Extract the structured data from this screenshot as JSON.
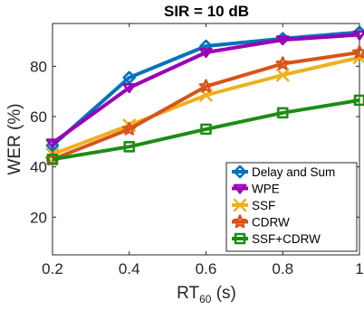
{
  "chart_data": {
    "type": "line",
    "title": "SIR = 10 dB",
    "xlabel": "RT",
    "xlabel_sub": "60",
    "xlabel_unit": " (s)",
    "ylabel": "WER (%)",
    "x": [
      0.2,
      0.4,
      0.6,
      0.8,
      1.0
    ],
    "x_ticks": [
      "0.2",
      "0.4",
      "0.6",
      "0.8",
      "1"
    ],
    "y_ticks": [
      "20",
      "40",
      "60",
      "80"
    ],
    "xlim": [
      0.2,
      1.0
    ],
    "ylim": [
      5,
      97
    ],
    "grid": false,
    "legend_position": "lower-right",
    "series": [
      {
        "name": "Delay and Sum",
        "color": "#0072BD",
        "marker": "diamond",
        "values": [
          48.5,
          75.5,
          88,
          91,
          93.5
        ]
      },
      {
        "name": "WPE",
        "color": "#9B00B5",
        "marker": "triangle-down",
        "values": [
          49.5,
          71.5,
          85.5,
          90.5,
          92.5
        ]
      },
      {
        "name": "SSF",
        "color": "#EDB120",
        "marker": "x",
        "values": [
          45,
          56.5,
          68.5,
          76.5,
          83.5
        ]
      },
      {
        "name": "CDRW",
        "color": "#D95319",
        "marker": "star",
        "values": [
          43,
          55,
          72,
          81,
          85.5
        ]
      },
      {
        "name": "SSF+CDRW",
        "color": "#1E8C14",
        "marker": "square",
        "values": [
          43,
          48,
          55,
          61.5,
          66.5
        ]
      }
    ]
  }
}
